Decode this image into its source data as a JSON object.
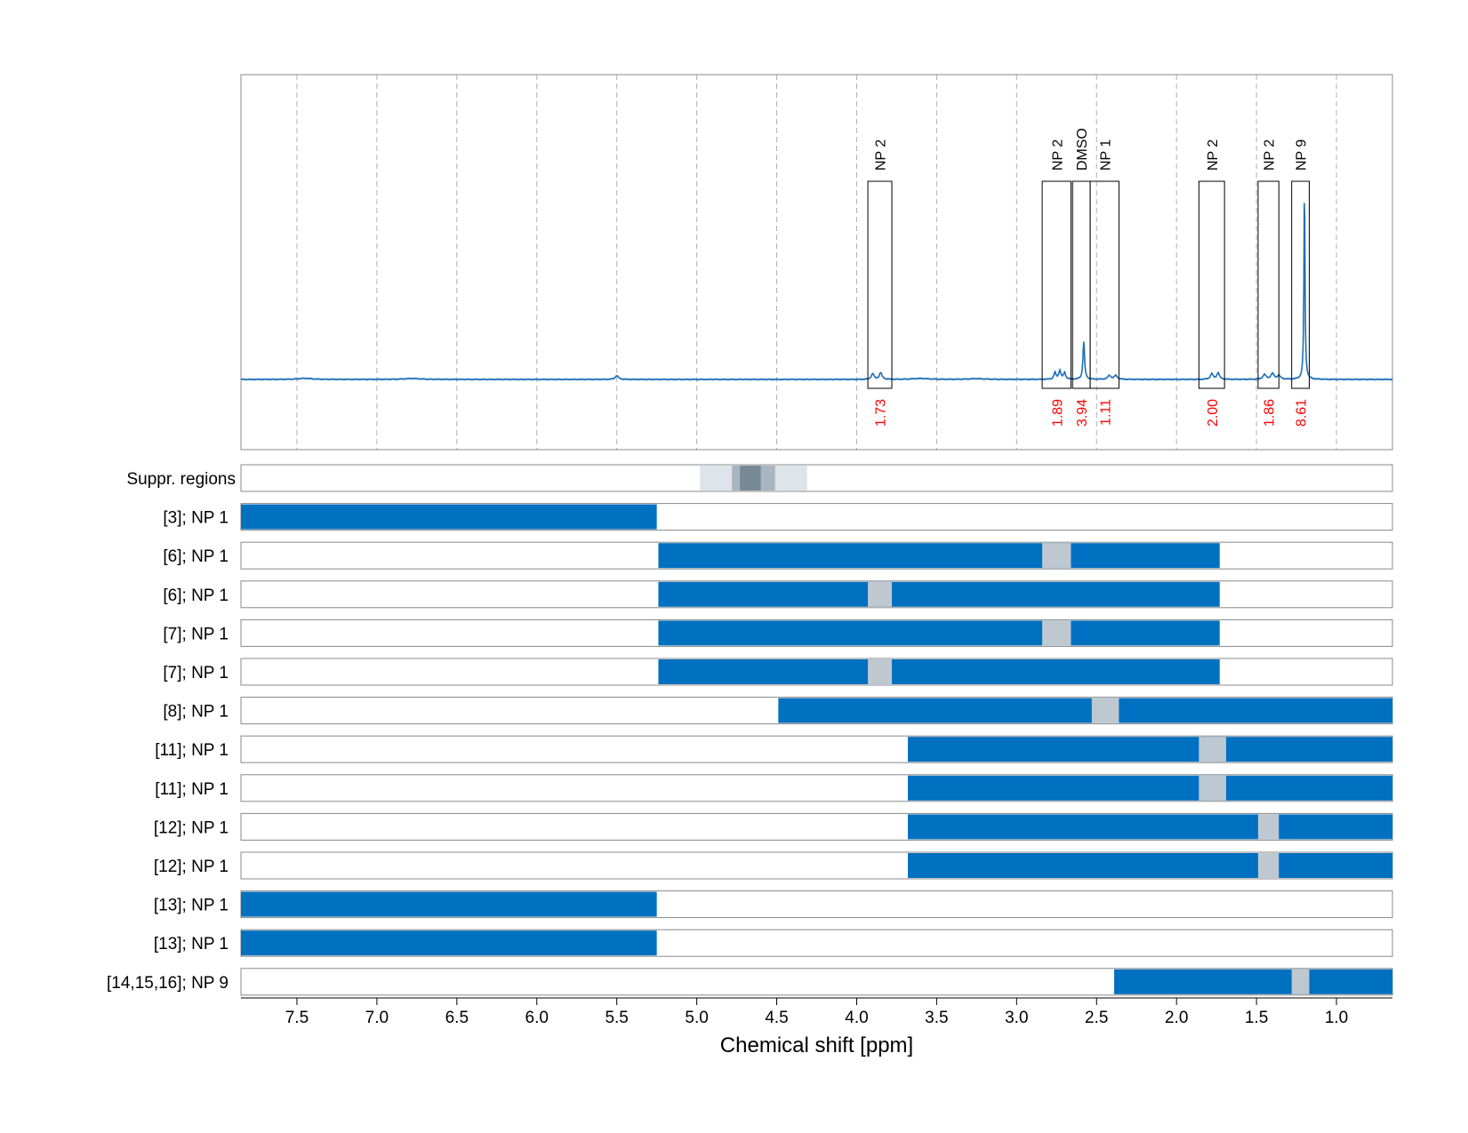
{
  "chart_data": {
    "type": "nmr_spectrum_with_ranges",
    "xlabel": "Chemical shift [ppm]",
    "xlim": [
      7.85,
      0.65
    ],
    "x_ticks": [
      7.5,
      7.0,
      6.5,
      6.0,
      5.5,
      5.0,
      4.5,
      4.0,
      3.5,
      3.0,
      2.5,
      2.0,
      1.5,
      1.0
    ],
    "x_tick_labels": [
      "7.5",
      "7.0",
      "6.5",
      "6.0",
      "5.5",
      "5.0",
      "4.5",
      "4.0",
      "3.5",
      "3.0",
      "2.5",
      "2.0",
      "1.5",
      "1.0"
    ],
    "grid": true,
    "colors": {
      "spectrum": "#1f6fb8",
      "range_bar": "#0070c0",
      "excluded": "#bdc8d0",
      "integral_text": "#ff0000",
      "frame": "#888888",
      "suppr_light": "#dde4ea",
      "suppr_mid": "#a9b5c0",
      "suppr_dark": "#778896"
    },
    "spectrum": {
      "baseline": 0.0,
      "peaks": [
        {
          "x": 7.45,
          "y": 0.006,
          "w": 0.05
        },
        {
          "x": 6.78,
          "y": 0.005,
          "w": 0.06
        },
        {
          "x": 5.5,
          "y": 0.02,
          "w": 0.012
        },
        {
          "x": 3.9,
          "y": 0.03,
          "w": 0.01
        },
        {
          "x": 3.85,
          "y": 0.035,
          "w": 0.01
        },
        {
          "x": 3.6,
          "y": 0.005,
          "w": 0.06
        },
        {
          "x": 3.25,
          "y": 0.004,
          "w": 0.06
        },
        {
          "x": 2.76,
          "y": 0.035,
          "w": 0.008
        },
        {
          "x": 2.73,
          "y": 0.045,
          "w": 0.008
        },
        {
          "x": 2.7,
          "y": 0.035,
          "w": 0.008
        },
        {
          "x": 2.58,
          "y": 0.2,
          "w": 0.006
        },
        {
          "x": 2.42,
          "y": 0.02,
          "w": 0.012
        },
        {
          "x": 2.38,
          "y": 0.02,
          "w": 0.012
        },
        {
          "x": 1.78,
          "y": 0.03,
          "w": 0.01
        },
        {
          "x": 1.74,
          "y": 0.035,
          "w": 0.01
        },
        {
          "x": 1.45,
          "y": 0.025,
          "w": 0.012
        },
        {
          "x": 1.4,
          "y": 0.03,
          "w": 0.012
        },
        {
          "x": 1.36,
          "y": 0.02,
          "w": 0.012
        },
        {
          "x": 1.2,
          "y": 1.0,
          "w": 0.004
        }
      ]
    },
    "peak_regions": [
      {
        "label": "NP 2",
        "integral": "1.73",
        "from": 3.93,
        "to": 3.78
      },
      {
        "label": "NP 2",
        "integral": "1.89",
        "from": 2.84,
        "to": 2.66
      },
      {
        "label": "DMSO",
        "integral": "3.94",
        "from": 2.65,
        "to": 2.54
      },
      {
        "label": "NP 1",
        "integral": "1.11",
        "from": 2.54,
        "to": 2.36
      },
      {
        "label": "NP 2",
        "integral": "2.00",
        "from": 1.86,
        "to": 1.7
      },
      {
        "label": "NP 2",
        "integral": "1.86",
        "from": 1.49,
        "to": 1.36
      },
      {
        "label": "NP 9",
        "integral": "8.61",
        "from": 1.28,
        "to": 1.17
      }
    ],
    "suppr_regions": {
      "label": "Suppr. regions",
      "bands": [
        {
          "from": 4.98,
          "to": 4.31,
          "shade": "light"
        },
        {
          "from": 4.78,
          "to": 4.51,
          "shade": "mid"
        },
        {
          "from": 4.73,
          "to": 4.6,
          "shade": "dark"
        }
      ]
    },
    "ranges": [
      {
        "label": "[3]; NP 1",
        "from": 7.85,
        "to": 5.25,
        "exclude": []
      },
      {
        "label": "[6]; NP 1",
        "from": 5.24,
        "to": 1.73,
        "exclude": [
          [
            2.84,
            2.66
          ]
        ]
      },
      {
        "label": "[6]; NP 1",
        "from": 5.24,
        "to": 1.73,
        "exclude": [
          [
            3.93,
            3.78
          ]
        ]
      },
      {
        "label": "[7]; NP 1",
        "from": 5.24,
        "to": 1.73,
        "exclude": [
          [
            2.84,
            2.66
          ]
        ]
      },
      {
        "label": "[7]; NP 1",
        "from": 5.24,
        "to": 1.73,
        "exclude": [
          [
            3.93,
            3.78
          ]
        ]
      },
      {
        "label": "[8]; NP 1",
        "from": 4.49,
        "to": 0.65,
        "exclude": [
          [
            2.53,
            2.36
          ]
        ]
      },
      {
        "label": "[11]; NP 1",
        "from": 3.68,
        "to": 0.65,
        "exclude": [
          [
            1.86,
            1.69
          ]
        ]
      },
      {
        "label": "[11]; NP 1",
        "from": 3.68,
        "to": 0.65,
        "exclude": [
          [
            1.86,
            1.69
          ]
        ]
      },
      {
        "label": "[12]; NP 1",
        "from": 3.68,
        "to": 0.65,
        "exclude": [
          [
            1.49,
            1.36
          ]
        ]
      },
      {
        "label": "[12]; NP 1",
        "from": 3.68,
        "to": 0.65,
        "exclude": [
          [
            1.49,
            1.36
          ]
        ]
      },
      {
        "label": "[13]; NP 1",
        "from": 7.85,
        "to": 5.25,
        "exclude": []
      },
      {
        "label": "[13]; NP 1",
        "from": 7.85,
        "to": 5.25,
        "exclude": []
      },
      {
        "label": "[14,15,16]; NP 9",
        "from": 2.39,
        "to": 0.65,
        "exclude": [
          [
            1.28,
            1.17
          ]
        ]
      }
    ]
  }
}
